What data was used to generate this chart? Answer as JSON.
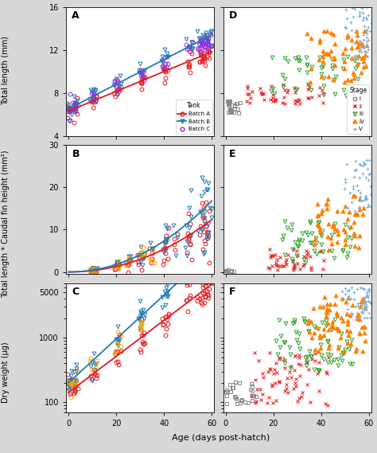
{
  "panel_labels": [
    "A",
    "B",
    "C",
    "D",
    "E",
    "F"
  ],
  "batch_A_color": "#e31a1c",
  "batch_B_color": "#1f78b4",
  "batch_C_color": "#a020f0",
  "stage_I_color": "#888888",
  "stage_II_color": "#e31a1c",
  "stage_III_color": "#33a02c",
  "stage_IV_color": "#ff7f00",
  "stage_V_color": "#80b1d3",
  "bg_color": "#d8d8d8",
  "panel_bg": "#ffffff",
  "xlim": [
    -1,
    61
  ],
  "xticks": [
    0,
    20,
    40,
    60
  ],
  "ylim_A": [
    4,
    16
  ],
  "yticks_A": [
    4,
    8,
    12,
    16
  ],
  "ylim_B": [
    -0.5,
    30
  ],
  "yticks_B": [
    0,
    10,
    20,
    30
  ],
  "ylim_C": [
    70,
    7000
  ],
  "ylim_D": [
    4,
    16
  ],
  "yticks_D": [
    4,
    8,
    12,
    16
  ],
  "ylim_E": [
    -0.5,
    30
  ],
  "yticks_E": [
    0,
    10,
    20,
    30
  ],
  "ylim_F": [
    70,
    7000
  ],
  "ylabel_A": "Total length (mm)",
  "ylabel_B": "Total length * Caudal fin height (mm²)",
  "ylabel_C": "Dry weight (µg)",
  "xlabel": "Age (days post-hatch)",
  "title_fontsize": 8,
  "label_fontsize": 7,
  "tick_fontsize": 7
}
